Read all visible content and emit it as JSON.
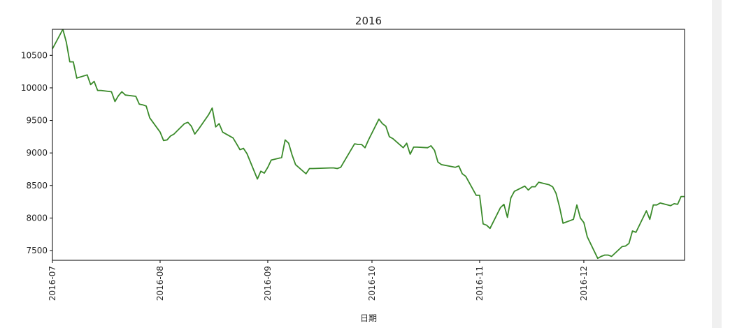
{
  "chart_data": {
    "type": "line",
    "title": "2016",
    "xlabel": "日期",
    "ylabel": "",
    "xlim": [
      "2016-07-01",
      "2016-12-30"
    ],
    "ylim": [
      7350,
      10900
    ],
    "yticks": [
      7500,
      8000,
      8500,
      9000,
      9500,
      10000,
      10500
    ],
    "xticks": [
      "2016-07",
      "2016-08",
      "2016-09",
      "2016-10",
      "2016-11",
      "2016-12"
    ],
    "xtick_dates": [
      "2016-07-01",
      "2016-08-01",
      "2016-09-01",
      "2016-10-01",
      "2016-11-01",
      "2016-12-01"
    ],
    "grid": false,
    "legend": "none",
    "line_color": "#3a8a2a",
    "series": [
      {
        "x": [
          "2016-07-01",
          "2016-07-04",
          "2016-07-05",
          "2016-07-06",
          "2016-07-07",
          "2016-07-08",
          "2016-07-11",
          "2016-07-12",
          "2016-07-13",
          "2016-07-14",
          "2016-07-15",
          "2016-07-18",
          "2016-07-19",
          "2016-07-20",
          "2016-07-21",
          "2016-07-22",
          "2016-07-25",
          "2016-07-26",
          "2016-07-27",
          "2016-07-28",
          "2016-07-29",
          "2016-08-01",
          "2016-08-02",
          "2016-08-03",
          "2016-08-04",
          "2016-08-05",
          "2016-08-08",
          "2016-08-09",
          "2016-08-10",
          "2016-08-11",
          "2016-08-12",
          "2016-08-15",
          "2016-08-16",
          "2016-08-17",
          "2016-08-18",
          "2016-08-19",
          "2016-08-22",
          "2016-08-23",
          "2016-08-24",
          "2016-08-25",
          "2016-08-26",
          "2016-08-29",
          "2016-08-30",
          "2016-08-31",
          "2016-09-01",
          "2016-09-02",
          "2016-09-05",
          "2016-09-06",
          "2016-09-07",
          "2016-09-08",
          "2016-09-09",
          "2016-09-12",
          "2016-09-13",
          "2016-09-14",
          "2016-09-19",
          "2016-09-20",
          "2016-09-21",
          "2016-09-22",
          "2016-09-23",
          "2016-09-26",
          "2016-09-27",
          "2016-09-28",
          "2016-09-29",
          "2016-09-30",
          "2016-10-03",
          "2016-10-04",
          "2016-10-05",
          "2016-10-06",
          "2016-10-07",
          "2016-10-10",
          "2016-10-11",
          "2016-10-12",
          "2016-10-13",
          "2016-10-14",
          "2016-10-17",
          "2016-10-18",
          "2016-10-19",
          "2016-10-20",
          "2016-10-21",
          "2016-10-24",
          "2016-10-25",
          "2016-10-26",
          "2016-10-27",
          "2016-10-28",
          "2016-10-31",
          "2016-11-01",
          "2016-11-02",
          "2016-11-03",
          "2016-11-04",
          "2016-11-07",
          "2016-11-08",
          "2016-11-09",
          "2016-11-10",
          "2016-11-11",
          "2016-11-14",
          "2016-11-15",
          "2016-11-16",
          "2016-11-17",
          "2016-11-18",
          "2016-11-21",
          "2016-11-22",
          "2016-11-23",
          "2016-11-24",
          "2016-11-25",
          "2016-11-28",
          "2016-11-29",
          "2016-11-30",
          "2016-12-01",
          "2016-12-02",
          "2016-12-05",
          "2016-12-06",
          "2016-12-07",
          "2016-12-08",
          "2016-12-09",
          "2016-12-12",
          "2016-12-13",
          "2016-12-14",
          "2016-12-15",
          "2016-12-16",
          "2016-12-19",
          "2016-12-20",
          "2016-12-21",
          "2016-12-22",
          "2016-12-23",
          "2016-12-26",
          "2016-12-27",
          "2016-12-28",
          "2016-12-29",
          "2016-12-30"
        ],
        "values": [
          10600,
          10900,
          10700,
          10400,
          10400,
          10150,
          10200,
          10050,
          10100,
          9960,
          9960,
          9940,
          9790,
          9880,
          9940,
          9890,
          9870,
          9750,
          9740,
          9720,
          9540,
          9320,
          9190,
          9200,
          9260,
          9290,
          9450,
          9470,
          9410,
          9290,
          9360,
          9590,
          9690,
          9400,
          9450,
          9320,
          9230,
          9140,
          9050,
          9070,
          8990,
          8600,
          8720,
          8690,
          8780,
          8890,
          8930,
          9200,
          9150,
          8970,
          8820,
          8680,
          8760,
          8760,
          8770,
          8770,
          8760,
          8780,
          8870,
          9140,
          9130,
          9130,
          9080,
          9200,
          9520,
          9450,
          9410,
          9250,
          9220,
          9080,
          9150,
          8980,
          9090,
          9090,
          9080,
          9110,
          9040,
          8860,
          8820,
          8790,
          8780,
          8800,
          8680,
          8640,
          8350,
          8350,
          7910,
          7890,
          7840,
          8160,
          8210,
          8010,
          8310,
          8410,
          8490,
          8430,
          8480,
          8480,
          8550,
          8510,
          8480,
          8380,
          8170,
          7920,
          7980,
          8200,
          8000,
          7930,
          7710,
          7380,
          7410,
          7430,
          7430,
          7410,
          7560,
          7570,
          7610,
          7800,
          7780,
          8110,
          7980,
          8200,
          8200,
          8230,
          8190,
          8220,
          8210,
          8330,
          8330
        ]
      }
    ]
  }
}
